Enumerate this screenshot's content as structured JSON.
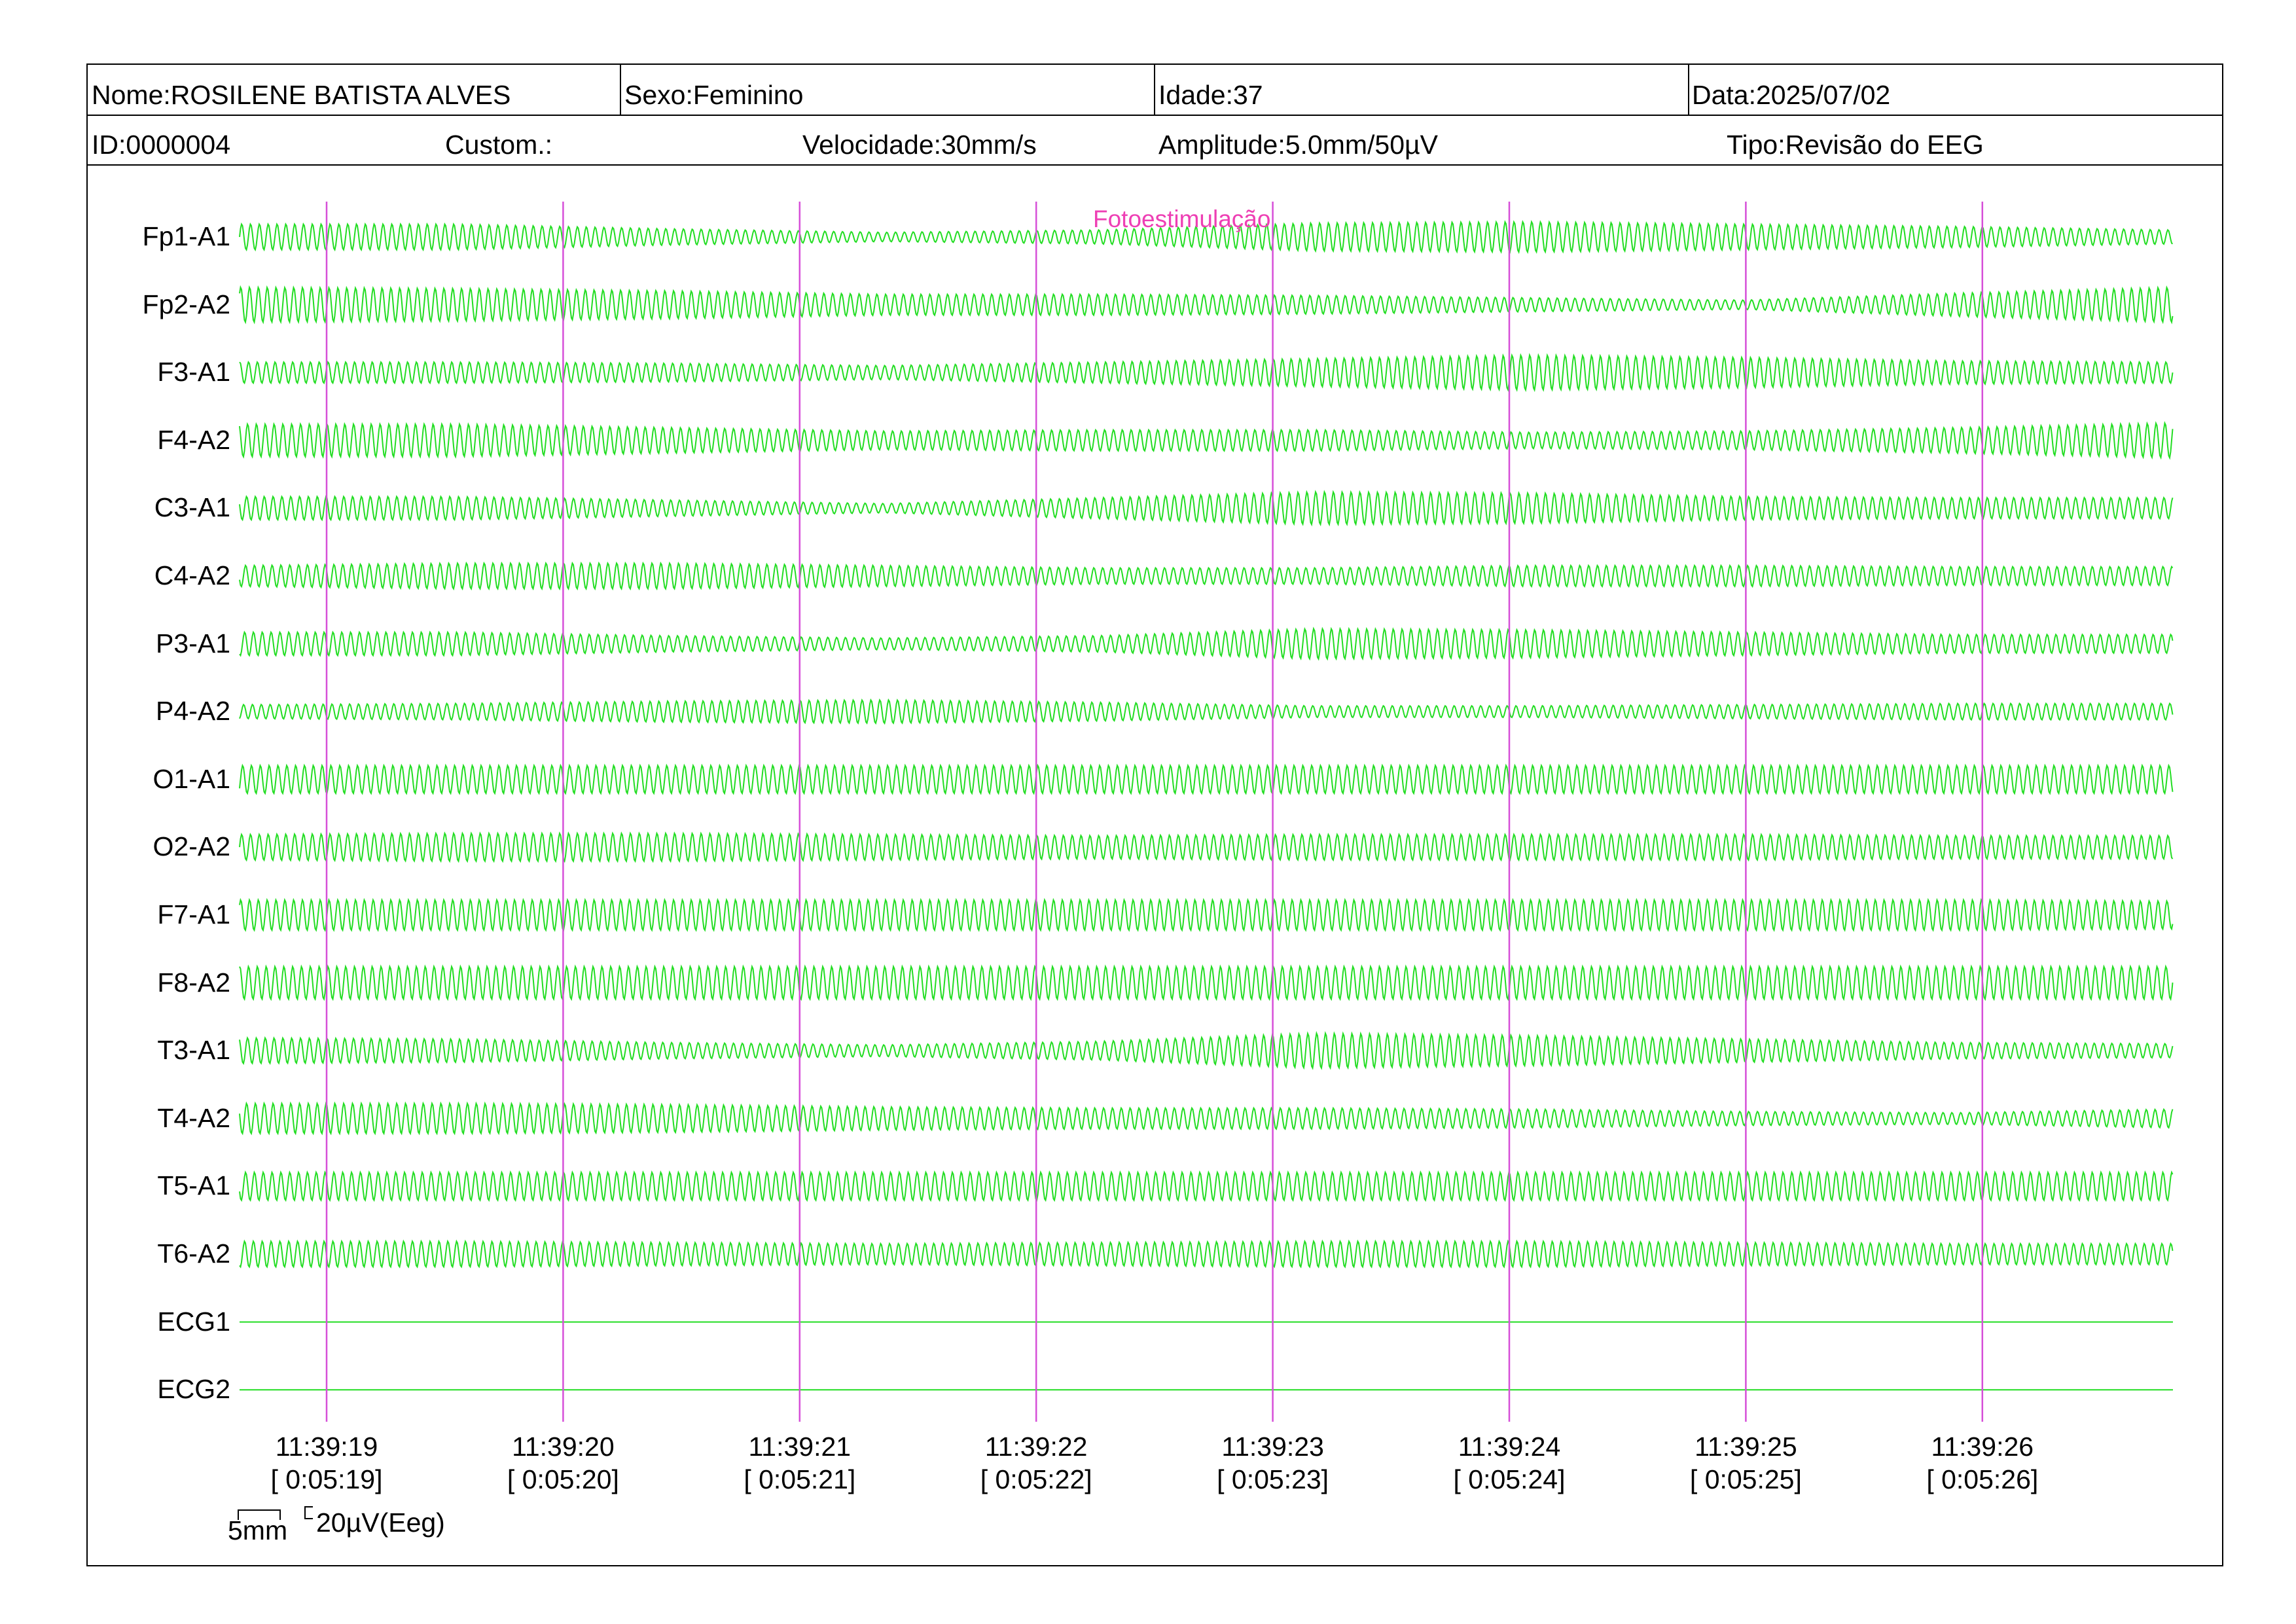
{
  "header": {
    "name": "Nome:ROSILENE BATISTA ALVES",
    "sex": "Sexo:Feminino",
    "age": "Idade:37",
    "date": "Data:2025/07/02",
    "id": "ID:0000004",
    "custom": "Custom.:",
    "speed": "Velocidade:30mm/s",
    "amplitude": "Amplitude:5.0mm/50µV",
    "type": "Tipo:Revisão do EEG"
  },
  "event": {
    "label": "Fotoestimulação"
  },
  "channels": [
    "Fp1-A1",
    "Fp2-A2",
    "F3-A1",
    "F4-A2",
    "C3-A1",
    "C4-A2",
    "P3-A1",
    "P4-A2",
    "O1-A1",
    "O2-A2",
    "F7-A1",
    "F8-A2",
    "T3-A1",
    "T4-A2",
    "T5-A1",
    "T6-A2",
    "ECG1",
    "ECG2"
  ],
  "time_markers": [
    {
      "clock": "11:39:19",
      "elapsed": "[ 0:05:19]"
    },
    {
      "clock": "11:39:20",
      "elapsed": "[ 0:05:20]"
    },
    {
      "clock": "11:39:21",
      "elapsed": "[ 0:05:21]"
    },
    {
      "clock": "11:39:22",
      "elapsed": "[ 0:05:22]"
    },
    {
      "clock": "11:39:23",
      "elapsed": "[ 0:05:23]"
    },
    {
      "clock": "11:39:24",
      "elapsed": "[ 0:05:24]"
    },
    {
      "clock": "11:39:25",
      "elapsed": "[ 0:05:25]"
    },
    {
      "clock": "11:39:26",
      "elapsed": "[ 0:05:26]"
    }
  ],
  "scale": {
    "time_label": "5mm",
    "amp_label": "20µV(Eeg)"
  },
  "colors": {
    "trace": "#22dd22",
    "marker": "#d64fd8",
    "event": "#ee3fb4",
    "frame": "#000000"
  }
}
